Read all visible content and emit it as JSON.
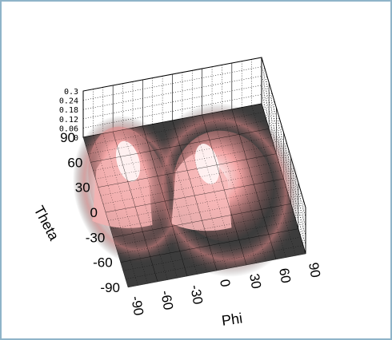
{
  "chart_data": {
    "type": "surface",
    "title": "",
    "xlabel": "Phi",
    "ylabel": "Theta",
    "zlabel": "",
    "xlim": [
      -90,
      90
    ],
    "ylim": [
      -90,
      90
    ],
    "zlim": [
      0,
      0.3
    ],
    "x_ticks": [
      "-90",
      "-60",
      "-30",
      "0",
      "30",
      "60",
      "90"
    ],
    "y_ticks": [
      "90",
      "60",
      "30",
      "0",
      "-30",
      "-60",
      "-90"
    ],
    "z_ticks": [
      "0",
      "0.06",
      "0.12",
      "0.18",
      "0.24",
      "0.3"
    ],
    "grid": true,
    "colors": {
      "surface_low": "#3c3c3c",
      "surface_high": "#ffeeee",
      "frame": "#8fb4c9",
      "grid": "#000000"
    },
    "peaks": [
      {
        "phi": -60,
        "theta": 60,
        "z": 0.3
      },
      {
        "phi": 15,
        "theta": 40,
        "z": 0.3
      }
    ]
  }
}
